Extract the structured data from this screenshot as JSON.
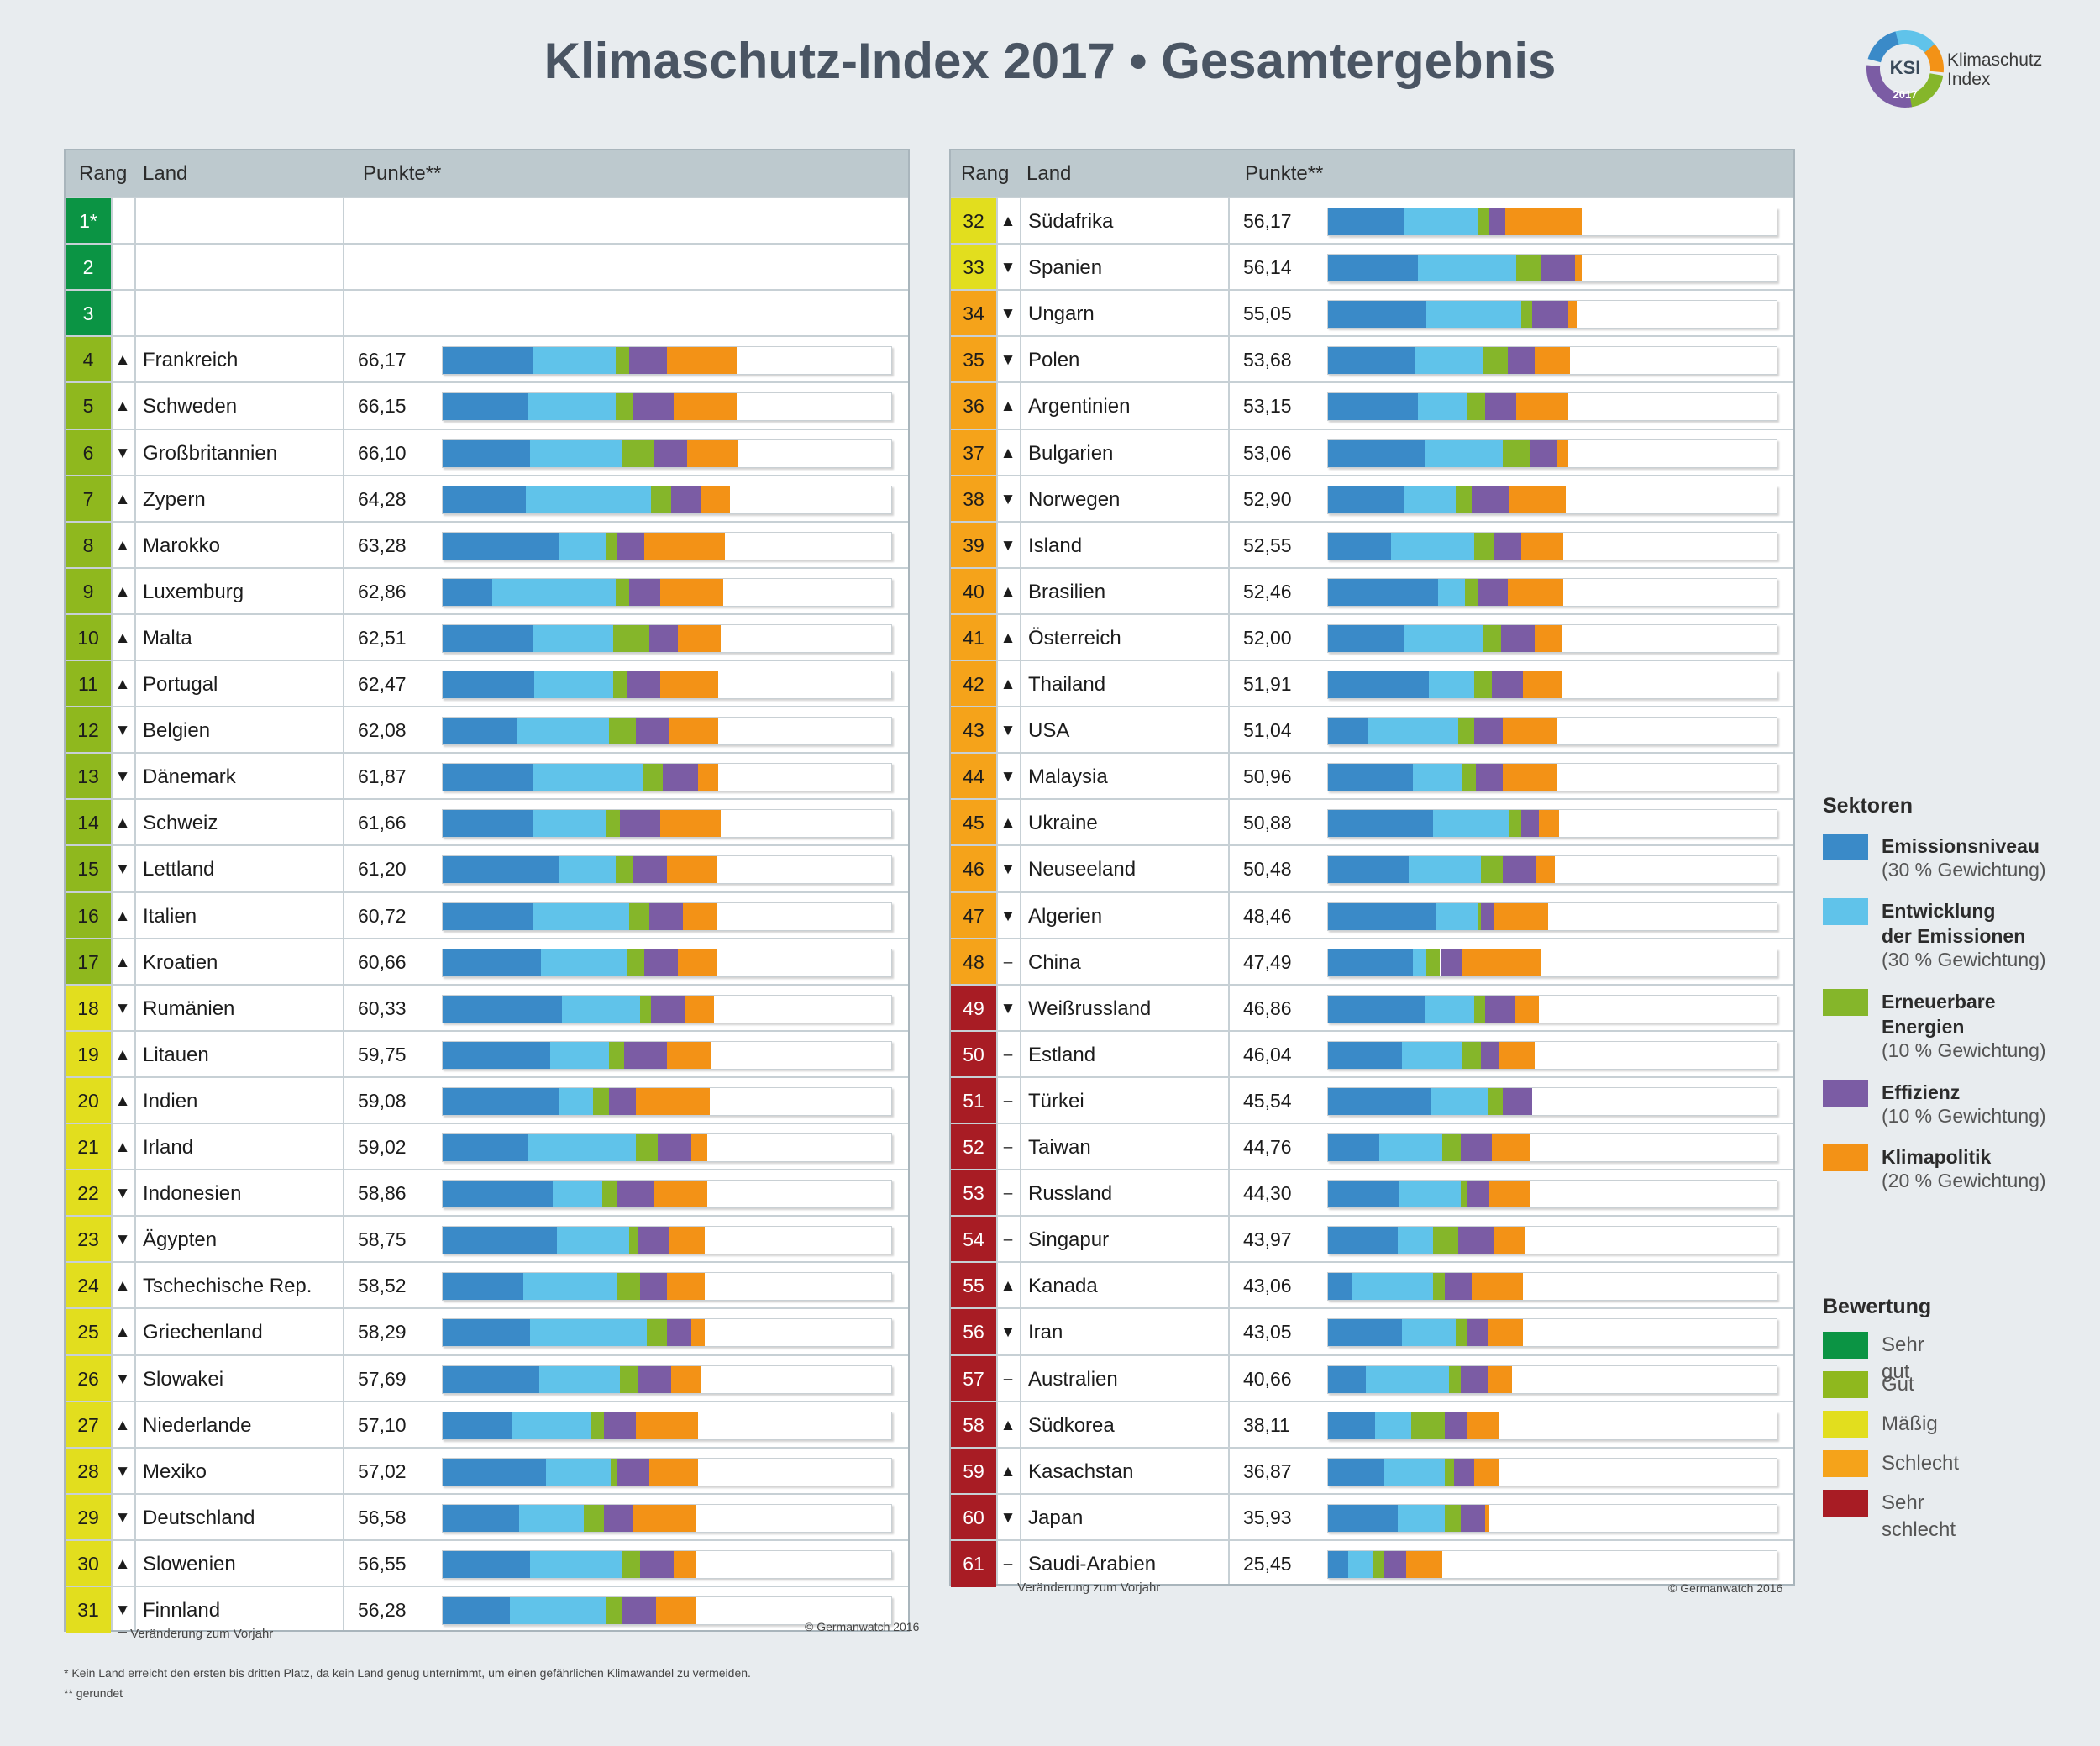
{
  "title": "Klimaschutz-Index 2017 • Gesamtergebnis",
  "logo": {
    "abbr": "KSI",
    "name_line1": "Klimaschutz",
    "name_line2": "Index",
    "year": "2017"
  },
  "table": {
    "col_rank": "Rang",
    "col_country": "Land",
    "col_points": "Punkte**"
  },
  "colors": {
    "rating": {
      "sehr_gut": "#0b9444",
      "gut": "#8fb81e",
      "maessig": "#e2de1e",
      "schlecht": "#f5a31a",
      "sehr_schlecht": "#a81c24"
    },
    "sectors": [
      "#3a8ac8",
      "#60c3ea",
      "#85b62a",
      "#7b5ca4",
      "#f39216"
    ]
  },
  "chart_data": {
    "type": "bar",
    "stacked": true,
    "title": "Klimaschutz-Index 2017 • Gesamtergebnis",
    "series_names": [
      "Emissionsniveau",
      "Entwicklung der Emissionen",
      "Erneuerbare Energien",
      "Effizienz",
      "Klimapolitik"
    ],
    "xlim": [
      0,
      100
    ],
    "rows": [
      {
        "rank": "1*",
        "country": "",
        "change": "",
        "points": "",
        "rating": "sehr_gut",
        "segments": []
      },
      {
        "rank": "2",
        "country": "",
        "change": "",
        "points": "",
        "rating": "sehr_gut",
        "segments": []
      },
      {
        "rank": "3",
        "country": "",
        "change": "",
        "points": "",
        "rating": "sehr_gut",
        "segments": []
      },
      {
        "rank": "4",
        "country": "Frankreich",
        "change": "▲",
        "points": "66,17",
        "rating": "gut",
        "segments": [
          20.0,
          18.5,
          3.0,
          8.5,
          15.5
        ]
      },
      {
        "rank": "5",
        "country": "Schweden",
        "change": "▲",
        "points": "66,15",
        "rating": "gut",
        "segments": [
          19.0,
          19.5,
          4.0,
          9.0,
          14.0
        ]
      },
      {
        "rank": "6",
        "country": "Großbritannien",
        "change": "▼",
        "points": "66,10",
        "rating": "gut",
        "segments": [
          19.5,
          20.5,
          7.0,
          7.5,
          11.5
        ]
      },
      {
        "rank": "7",
        "country": "Zypern",
        "change": "▲",
        "points": "64,28",
        "rating": "gut",
        "segments": [
          18.5,
          28.0,
          4.5,
          6.5,
          6.5
        ]
      },
      {
        "rank": "8",
        "country": "Marokko",
        "change": "▲",
        "points": "63,28",
        "rating": "gut",
        "segments": [
          26.0,
          10.5,
          2.5,
          6.0,
          18.0
        ]
      },
      {
        "rank": "9",
        "country": "Luxemburg",
        "change": "▲",
        "points": "62,86",
        "rating": "gut",
        "segments": [
          11.0,
          27.5,
          3.0,
          7.0,
          14.0
        ]
      },
      {
        "rank": "10",
        "country": "Malta",
        "change": "▲",
        "points": "62,51",
        "rating": "gut",
        "segments": [
          20.0,
          18.0,
          8.0,
          6.5,
          9.5
        ]
      },
      {
        "rank": "11",
        "country": "Portugal",
        "change": "▲",
        "points": "62,47",
        "rating": "gut",
        "segments": [
          20.5,
          17.5,
          3.0,
          7.5,
          13.0
        ]
      },
      {
        "rank": "12",
        "country": "Belgien",
        "change": "▼",
        "points": "62,08",
        "rating": "gut",
        "segments": [
          16.5,
          20.5,
          6.0,
          7.5,
          11.0
        ]
      },
      {
        "rank": "13",
        "country": "Dänemark",
        "change": "▼",
        "points": "61,87",
        "rating": "gut",
        "segments": [
          20.0,
          24.5,
          4.5,
          8.0,
          4.5
        ]
      },
      {
        "rank": "14",
        "country": "Schweiz",
        "change": "▲",
        "points": "61,66",
        "rating": "gut",
        "segments": [
          20.0,
          16.5,
          3.0,
          9.0,
          13.5
        ]
      },
      {
        "rank": "15",
        "country": "Lettland",
        "change": "▼",
        "points": "61,20",
        "rating": "gut",
        "segments": [
          26.0,
          12.5,
          4.0,
          7.5,
          11.0
        ]
      },
      {
        "rank": "16",
        "country": "Italien",
        "change": "▲",
        "points": "60,72",
        "rating": "gut",
        "segments": [
          20.0,
          21.5,
          4.5,
          7.5,
          7.5
        ]
      },
      {
        "rank": "17",
        "country": "Kroatien",
        "change": "▲",
        "points": "60,66",
        "rating": "gut",
        "segments": [
          22.0,
          19.0,
          4.0,
          7.5,
          8.5
        ]
      },
      {
        "rank": "18",
        "country": "Rumänien",
        "change": "▼",
        "points": "60,33",
        "rating": "maessig",
        "segments": [
          26.5,
          17.5,
          2.5,
          7.5,
          6.5
        ]
      },
      {
        "rank": "19",
        "country": "Litauen",
        "change": "▲",
        "points": "59,75",
        "rating": "maessig",
        "segments": [
          24.0,
          13.0,
          3.5,
          9.5,
          10.0
        ]
      },
      {
        "rank": "20",
        "country": "Indien",
        "change": "▲",
        "points": "59,08",
        "rating": "maessig",
        "segments": [
          26.0,
          7.5,
          3.5,
          6.0,
          16.5
        ]
      },
      {
        "rank": "21",
        "country": "Irland",
        "change": "▲",
        "points": "59,02",
        "rating": "maessig",
        "segments": [
          19.0,
          24.0,
          5.0,
          7.5,
          3.5
        ]
      },
      {
        "rank": "22",
        "country": "Indonesien",
        "change": "▼",
        "points": "58,86",
        "rating": "maessig",
        "segments": [
          24.5,
          11.0,
          3.5,
          8.0,
          12.0
        ]
      },
      {
        "rank": "23",
        "country": "Ägypten",
        "change": "▼",
        "points": "58,75",
        "rating": "maessig",
        "segments": [
          25.5,
          16.0,
          2.0,
          7.0,
          8.0
        ]
      },
      {
        "rank": "24",
        "country": "Tschechische Rep.",
        "change": "▲",
        "points": "58,52",
        "rating": "maessig",
        "segments": [
          18.0,
          21.0,
          5.0,
          6.0,
          8.5
        ]
      },
      {
        "rank": "25",
        "country": "Griechenland",
        "change": "▲",
        "points": "58,29",
        "rating": "maessig",
        "segments": [
          19.5,
          26.0,
          4.5,
          5.5,
          3.0
        ]
      },
      {
        "rank": "26",
        "country": "Slowakei",
        "change": "▼",
        "points": "57,69",
        "rating": "maessig",
        "segments": [
          21.5,
          18.0,
          4.0,
          7.5,
          6.5
        ]
      },
      {
        "rank": "27",
        "country": "Niederlande",
        "change": "▲",
        "points": "57,10",
        "rating": "maessig",
        "segments": [
          15.5,
          17.5,
          3.0,
          7.0,
          14.0
        ]
      },
      {
        "rank": "28",
        "country": "Mexiko",
        "change": "▼",
        "points": "57,02",
        "rating": "maessig",
        "segments": [
          23.0,
          14.5,
          1.5,
          7.0,
          11.0
        ]
      },
      {
        "rank": "29",
        "country": "Deutschland",
        "change": "▼",
        "points": "56,58",
        "rating": "maessig",
        "segments": [
          17.0,
          14.5,
          4.5,
          6.5,
          14.0
        ]
      },
      {
        "rank": "30",
        "country": "Slowenien",
        "change": "▲",
        "points": "56,55",
        "rating": "maessig",
        "segments": [
          19.5,
          20.5,
          4.0,
          7.5,
          5.0
        ]
      },
      {
        "rank": "31",
        "country": "Finnland",
        "change": "▼",
        "points": "56,28",
        "rating": "maessig",
        "segments": [
          15.0,
          21.5,
          3.5,
          7.5,
          9.0
        ]
      },
      {
        "rank": "32",
        "country": "Südafrika",
        "change": "▲",
        "points": "56,17",
        "rating": "maessig",
        "segments": [
          17.0,
          16.5,
          2.5,
          3.5,
          17.0
        ]
      },
      {
        "rank": "33",
        "country": "Spanien",
        "change": "▼",
        "points": "56,14",
        "rating": "maessig",
        "segments": [
          20.0,
          22.0,
          5.5,
          7.5,
          1.5
        ]
      },
      {
        "rank": "34",
        "country": "Ungarn",
        "change": "▼",
        "points": "55,05",
        "rating": "schlecht",
        "segments": [
          22.0,
          21.0,
          2.5,
          8.0,
          2.0
        ]
      },
      {
        "rank": "35",
        "country": "Polen",
        "change": "▼",
        "points": "53,68",
        "rating": "schlecht",
        "segments": [
          19.5,
          15.0,
          5.5,
          6.0,
          8.0
        ]
      },
      {
        "rank": "36",
        "country": "Argentinien",
        "change": "▲",
        "points": "53,15",
        "rating": "schlecht",
        "segments": [
          20.0,
          11.0,
          4.0,
          7.0,
          11.5
        ]
      },
      {
        "rank": "37",
        "country": "Bulgarien",
        "change": "▲",
        "points": "53,06",
        "rating": "schlecht",
        "segments": [
          21.5,
          17.5,
          6.0,
          6.0,
          2.5
        ]
      },
      {
        "rank": "38",
        "country": "Norwegen",
        "change": "▼",
        "points": "52,90",
        "rating": "schlecht",
        "segments": [
          17.0,
          11.5,
          3.5,
          8.5,
          12.5
        ]
      },
      {
        "rank": "39",
        "country": "Island",
        "change": "▼",
        "points": "52,55",
        "rating": "schlecht",
        "segments": [
          14.0,
          18.5,
          4.5,
          6.0,
          9.5
        ]
      },
      {
        "rank": "40",
        "country": "Brasilien",
        "change": "▲",
        "points": "52,46",
        "rating": "schlecht",
        "segments": [
          24.5,
          6.0,
          3.0,
          6.5,
          12.5
        ]
      },
      {
        "rank": "41",
        "country": "Österreich",
        "change": "▲",
        "points": "52,00",
        "rating": "schlecht",
        "segments": [
          17.0,
          17.5,
          4.0,
          7.5,
          6.0
        ]
      },
      {
        "rank": "42",
        "country": "Thailand",
        "change": "▲",
        "points": "51,91",
        "rating": "schlecht",
        "segments": [
          22.5,
          10.0,
          4.0,
          7.0,
          8.5
        ]
      },
      {
        "rank": "43",
        "country": "USA",
        "change": "▼",
        "points": "51,04",
        "rating": "schlecht",
        "segments": [
          9.0,
          20.0,
          3.5,
          6.5,
          12.0
        ]
      },
      {
        "rank": "44",
        "country": "Malaysia",
        "change": "▼",
        "points": "50,96",
        "rating": "schlecht",
        "segments": [
          19.0,
          11.0,
          3.0,
          6.0,
          12.0
        ]
      },
      {
        "rank": "45",
        "country": "Ukraine",
        "change": "▲",
        "points": "50,88",
        "rating": "schlecht",
        "segments": [
          23.5,
          17.0,
          2.5,
          4.0,
          4.5
        ]
      },
      {
        "rank": "46",
        "country": "Neuseeland",
        "change": "▼",
        "points": "50,48",
        "rating": "schlecht",
        "segments": [
          18.0,
          16.0,
          5.0,
          7.5,
          4.0
        ]
      },
      {
        "rank": "47",
        "country": "Algerien",
        "change": "▼",
        "points": "48,46",
        "rating": "schlecht",
        "segments": [
          24.0,
          9.5,
          0.5,
          3.0,
          12.0
        ]
      },
      {
        "rank": "48",
        "country": "China",
        "change": "–",
        "points": "47,49",
        "rating": "schlecht",
        "segments": [
          19.0,
          3.0,
          3.0,
          5.0,
          17.5
        ]
      },
      {
        "rank": "49",
        "country": "Weißrussland",
        "change": "▼",
        "points": "46,86",
        "rating": "sehr_schlecht",
        "segments": [
          21.5,
          11.0,
          2.5,
          6.5,
          5.5
        ]
      },
      {
        "rank": "50",
        "country": "Estland",
        "change": "–",
        "points": "46,04",
        "rating": "sehr_schlecht",
        "segments": [
          16.5,
          13.5,
          4.0,
          4.0,
          8.0
        ]
      },
      {
        "rank": "51",
        "country": "Türkei",
        "change": "–",
        "points": "45,54",
        "rating": "sehr_schlecht",
        "segments": [
          23.0,
          12.5,
          3.5,
          6.5,
          0
        ]
      },
      {
        "rank": "52",
        "country": "Taiwan",
        "change": "–",
        "points": "44,76",
        "rating": "sehr_schlecht",
        "segments": [
          11.5,
          14.0,
          4.0,
          7.0,
          8.5
        ]
      },
      {
        "rank": "53",
        "country": "Russland",
        "change": "–",
        "points": "44,30",
        "rating": "sehr_schlecht",
        "segments": [
          16.0,
          13.5,
          1.5,
          5.0,
          9.0
        ]
      },
      {
        "rank": "54",
        "country": "Singapur",
        "change": "–",
        "points": "43,97",
        "rating": "sehr_schlecht",
        "segments": [
          15.5,
          8.0,
          5.5,
          8.0,
          7.0
        ]
      },
      {
        "rank": "55",
        "country": "Kanada",
        "change": "▲",
        "points": "43,06",
        "rating": "sehr_schlecht",
        "segments": [
          5.5,
          18.0,
          2.5,
          6.0,
          11.5
        ]
      },
      {
        "rank": "56",
        "country": "Iran",
        "change": "▼",
        "points": "43,05",
        "rating": "sehr_schlecht",
        "segments": [
          16.5,
          12.0,
          2.5,
          4.5,
          8.0
        ]
      },
      {
        "rank": "57",
        "country": "Australien",
        "change": "–",
        "points": "40,66",
        "rating": "sehr_schlecht",
        "segments": [
          8.5,
          18.5,
          2.5,
          6.0,
          5.5
        ]
      },
      {
        "rank": "58",
        "country": "Südkorea",
        "change": "▲",
        "points": "38,11",
        "rating": "sehr_schlecht",
        "segments": [
          10.5,
          8.0,
          7.5,
          5.0,
          7.0
        ]
      },
      {
        "rank": "59",
        "country": "Kasachstan",
        "change": "▲",
        "points": "36,87",
        "rating": "sehr_schlecht",
        "segments": [
          12.5,
          13.5,
          2.0,
          4.5,
          5.5
        ]
      },
      {
        "rank": "60",
        "country": "Japan",
        "change": "▼",
        "points": "35,93",
        "rating": "sehr_schlecht",
        "segments": [
          15.5,
          10.5,
          3.5,
          5.5,
          1.0
        ]
      },
      {
        "rank": "61",
        "country": "Saudi-Arabien",
        "change": "–",
        "points": "25,45",
        "rating": "sehr_schlecht",
        "segments": [
          4.5,
          5.5,
          2.5,
          5.0,
          8.0
        ]
      }
    ]
  },
  "footnotes": {
    "change_note_left": "Veränderung zum Vorjahr",
    "change_note_right": "Veränderung zum Vorjahr",
    "copyright_left": "© Germanwatch 2016",
    "copyright_right": "© Germanwatch 2016",
    "star": "*  Kein Land erreicht den ersten bis dritten Platz, da kein Land genug unternimmt, um einen gefährlichen Klimawandel zu vermeiden.",
    "double_star": "** gerundet"
  },
  "legend": {
    "sectors_title": "Sektoren",
    "sectors": [
      {
        "name": "Emissionsniveau",
        "name2": "",
        "weight": "(30 % Gewichtung)"
      },
      {
        "name": "Entwicklung",
        "name2": "der Emissionen",
        "weight": "(30 % Gewichtung)"
      },
      {
        "name": "Erneuerbare",
        "name2": "Energien",
        "weight": "(10 % Gewichtung)"
      },
      {
        "name": "Effizienz",
        "name2": "",
        "weight": "(10 % Gewichtung)"
      },
      {
        "name": "Klimapolitik",
        "name2": "",
        "weight": "(20 % Gewichtung)"
      }
    ],
    "rating_title": "Bewertung",
    "ratings": [
      {
        "key": "sehr_gut",
        "label": "Sehr gut"
      },
      {
        "key": "gut",
        "label": "Gut"
      },
      {
        "key": "maessig",
        "label": "Mäßig"
      },
      {
        "key": "schlecht",
        "label": "Schlecht"
      },
      {
        "key": "sehr_schlecht",
        "label": "Sehr schlecht"
      }
    ]
  }
}
